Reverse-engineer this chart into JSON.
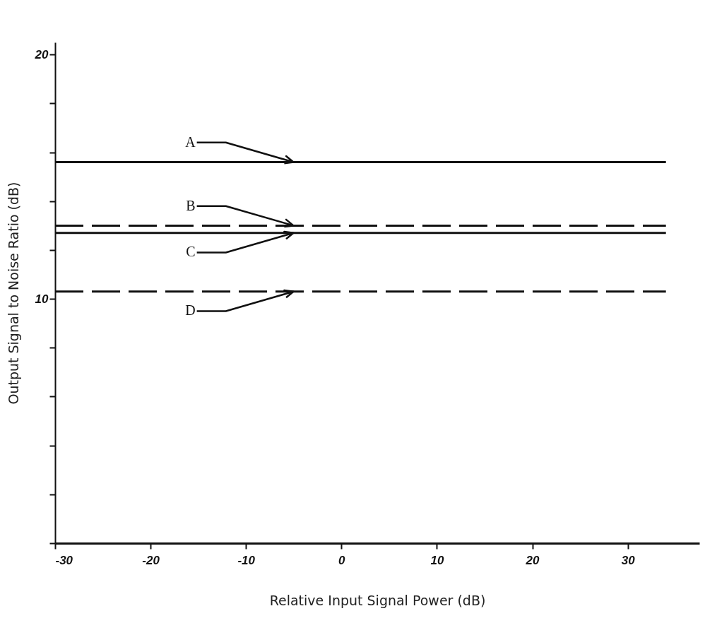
{
  "chart_data": {
    "type": "line",
    "xlabel": "Relative Input Signal Power (dB)",
    "ylabel": "Output Signal to Noise Ratio (dB)",
    "x": [
      -30,
      34
    ],
    "series": [
      {
        "name": "A",
        "color": "#111111",
        "values": [
          15.6,
          15.6
        ],
        "line_style": "solid"
      },
      {
        "name": "B",
        "color": "#111111",
        "values": [
          13.0,
          13.0
        ],
        "line_style": "dashed"
      },
      {
        "name": "C",
        "color": "#111111",
        "values": [
          12.7,
          12.7
        ],
        "line_style": "solid"
      },
      {
        "name": "D",
        "color": "#111111",
        "values": [
          10.3,
          10.3
        ],
        "line_style": "dashed"
      }
    ],
    "xlim": [
      -30,
      37.5
    ],
    "ylim": [
      0,
      20.5
    ],
    "xticks": [
      -30,
      -20,
      -10,
      0,
      10,
      20,
      30
    ],
    "yticks": [
      {
        "value": 0,
        "label": null
      },
      {
        "value": 2,
        "label": null
      },
      {
        "value": 4,
        "label": null
      },
      {
        "value": 6,
        "label": null
      },
      {
        "value": 8,
        "label": null
      },
      10,
      {
        "value": 12,
        "label": null
      },
      {
        "value": 14,
        "label": null
      },
      {
        "value": 16,
        "label": null
      },
      {
        "value": 18,
        "label": null
      },
      20
    ],
    "grid": false,
    "marker": "none"
  }
}
